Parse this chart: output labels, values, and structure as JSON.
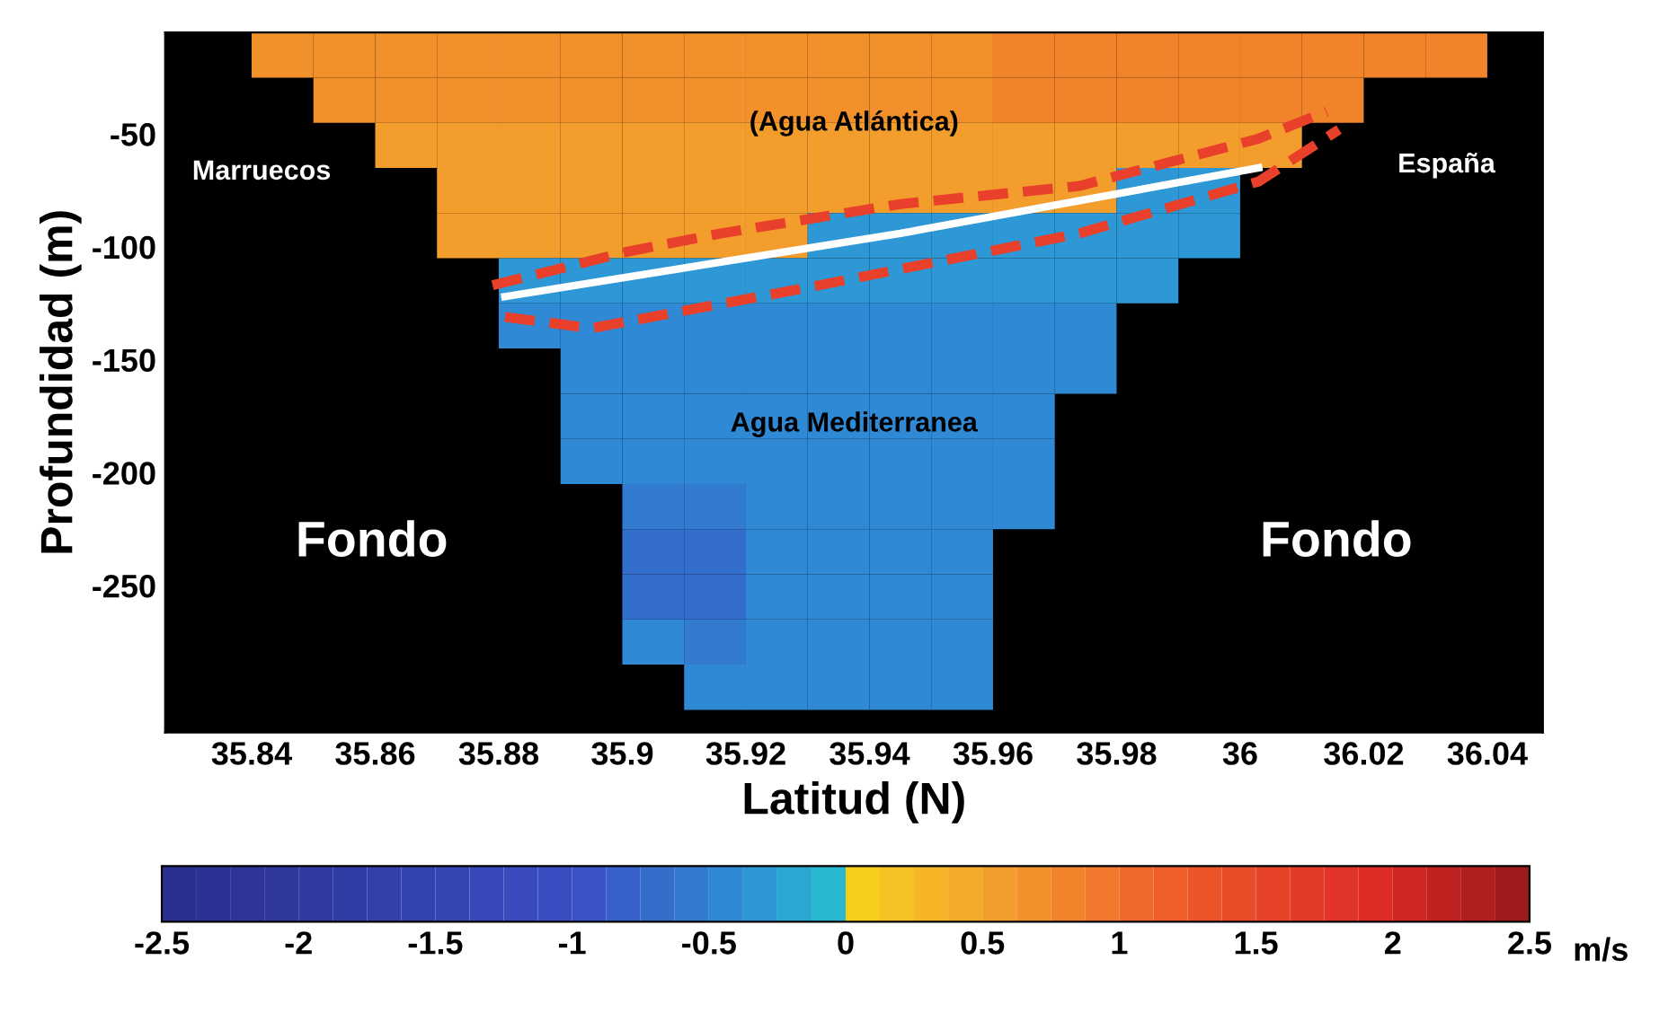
{
  "chart_data": {
    "type": "heatmap",
    "xlabel": "Latitud (N)",
    "ylabel": "Profundidad (m)",
    "clabel": "m/s",
    "x": [
      35.835,
      35.845,
      35.855,
      35.865,
      35.875,
      35.885,
      35.895,
      35.905,
      35.915,
      35.925,
      35.935,
      35.945,
      35.955,
      35.965,
      35.975,
      35.985,
      35.995,
      36.005,
      36.015,
      36.025,
      36.035,
      36.045
    ],
    "y": [
      -15,
      -35,
      -55,
      -75,
      -95,
      -115,
      -135,
      -155,
      -175,
      -195,
      -215,
      -235,
      -255,
      -275,
      -295
    ],
    "cells": [
      [
        null,
        0.7,
        0.7,
        0.7,
        0.7,
        0.7,
        0.7,
        0.7,
        0.7,
        0.7,
        0.7,
        0.7,
        0.7,
        0.8,
        0.8,
        0.8,
        0.8,
        0.8,
        0.8,
        0.8,
        0.8,
        null
      ],
      [
        null,
        null,
        0.7,
        0.7,
        0.7,
        0.7,
        0.7,
        0.7,
        0.7,
        0.7,
        0.7,
        0.7,
        0.7,
        0.8,
        0.8,
        0.8,
        0.8,
        0.8,
        0.8,
        null,
        null,
        null
      ],
      [
        null,
        null,
        null,
        0.6,
        0.6,
        0.6,
        0.6,
        0.6,
        0.6,
        0.6,
        0.6,
        0.6,
        0.6,
        0.6,
        0.6,
        0.6,
        0.6,
        0.6,
        null,
        null,
        null,
        null
      ],
      [
        null,
        null,
        null,
        null,
        0.6,
        0.6,
        0.6,
        0.6,
        0.6,
        0.6,
        0.6,
        0.6,
        0.6,
        0.5,
        0.5,
        -0.3,
        -0.3,
        null,
        null,
        null,
        null,
        null
      ],
      [
        null,
        null,
        null,
        null,
        0.5,
        0.5,
        0.5,
        0.5,
        0.5,
        0.5,
        -0.3,
        -0.3,
        -0.3,
        -0.3,
        -0.3,
        -0.3,
        -0.3,
        null,
        null,
        null,
        null,
        null
      ],
      [
        null,
        null,
        null,
        null,
        null,
        -0.3,
        -0.3,
        -0.3,
        -0.3,
        -0.3,
        -0.3,
        -0.3,
        -0.3,
        -0.3,
        -0.3,
        -0.3,
        null,
        null,
        null,
        null,
        null,
        null
      ],
      [
        null,
        null,
        null,
        null,
        null,
        -0.4,
        -0.4,
        -0.4,
        -0.4,
        -0.4,
        -0.4,
        -0.4,
        -0.4,
        -0.4,
        -0.4,
        null,
        null,
        null,
        null,
        null,
        null,
        null
      ],
      [
        null,
        null,
        null,
        null,
        null,
        null,
        -0.4,
        -0.4,
        -0.4,
        -0.4,
        -0.4,
        -0.4,
        -0.4,
        -0.4,
        -0.4,
        null,
        null,
        null,
        null,
        null,
        null,
        null
      ],
      [
        null,
        null,
        null,
        null,
        null,
        null,
        -0.4,
        -0.4,
        -0.4,
        -0.4,
        -0.4,
        -0.4,
        -0.4,
        -0.4,
        null,
        null,
        null,
        null,
        null,
        null,
        null,
        null
      ],
      [
        null,
        null,
        null,
        null,
        null,
        null,
        -0.4,
        -0.5,
        -0.4,
        -0.4,
        -0.4,
        -0.4,
        -0.4,
        -0.4,
        null,
        null,
        null,
        null,
        null,
        null,
        null,
        null
      ],
      [
        null,
        null,
        null,
        null,
        null,
        null,
        null,
        -0.6,
        -0.6,
        -0.5,
        -0.5,
        -0.5,
        -0.5,
        -0.5,
        null,
        null,
        null,
        null,
        null,
        null,
        null,
        null
      ],
      [
        null,
        null,
        null,
        null,
        null,
        null,
        null,
        -0.7,
        -0.7,
        -0.5,
        -0.5,
        -0.5,
        -0.5,
        null,
        null,
        null,
        null,
        null,
        null,
        null,
        null,
        null
      ],
      [
        null,
        null,
        null,
        null,
        null,
        null,
        null,
        -0.7,
        -0.7,
        -0.5,
        -0.5,
        -0.5,
        -0.5,
        null,
        null,
        null,
        null,
        null,
        null,
        null,
        null,
        null
      ],
      [
        null,
        null,
        null,
        null,
        null,
        null,
        null,
        -0.5,
        -0.6,
        -0.5,
        -0.5,
        -0.5,
        -0.5,
        null,
        null,
        null,
        null,
        null,
        null,
        null,
        null,
        null
      ],
      [
        null,
        null,
        null,
        null,
        null,
        null,
        null,
        null,
        -0.5,
        -0.5,
        -0.5,
        -0.5,
        -0.5,
        null,
        null,
        null,
        null,
        null,
        null,
        null,
        null,
        null
      ]
    ],
    "clim": [
      -2.5,
      2.5
    ],
    "cticks": [
      -2.5,
      -2,
      -1.5,
      -1,
      -0.5,
      0,
      0.5,
      1,
      1.5,
      2,
      2.5
    ],
    "xlim": [
      35.826,
      36.049
    ],
    "xticks": [
      35.84,
      35.86,
      35.88,
      35.9,
      35.92,
      35.94,
      35.96,
      35.98,
      36,
      36.02,
      36.04
    ],
    "ylim": [
      -315,
      -5
    ],
    "yticks": [
      -50,
      -100,
      -150,
      -200,
      -250
    ],
    "series": [
      {
        "type": "line",
        "color": "#e8402a",
        "line_style": "dashed",
        "x": [
          35.879,
          35.901,
          35.916,
          35.945,
          35.974,
          36.003,
          36.014
        ],
        "values": [
          -117,
          -102,
          -94,
          -81,
          -73,
          -52,
          -40
        ]
      },
      {
        "type": "line",
        "color": "#ffffff",
        "line_style": "solid",
        "x": [
          35.881,
          35.945,
          36.003
        ],
        "values": [
          -122,
          -94,
          -65
        ]
      },
      {
        "type": "line",
        "color": "#e8402a",
        "line_style": "dashed",
        "x": [
          35.881,
          35.895,
          35.93,
          35.974,
          36.003,
          36.016
        ],
        "values": [
          -131,
          -136,
          -118,
          -94,
          -71,
          -48
        ]
      }
    ],
    "annotations": [
      "(Agua Atlántica)",
      "Marruecos",
      "España",
      "Agua Mediterranea",
      "Fondo",
      "Fondo"
    ],
    "grid": false,
    "legend": false
  }
}
